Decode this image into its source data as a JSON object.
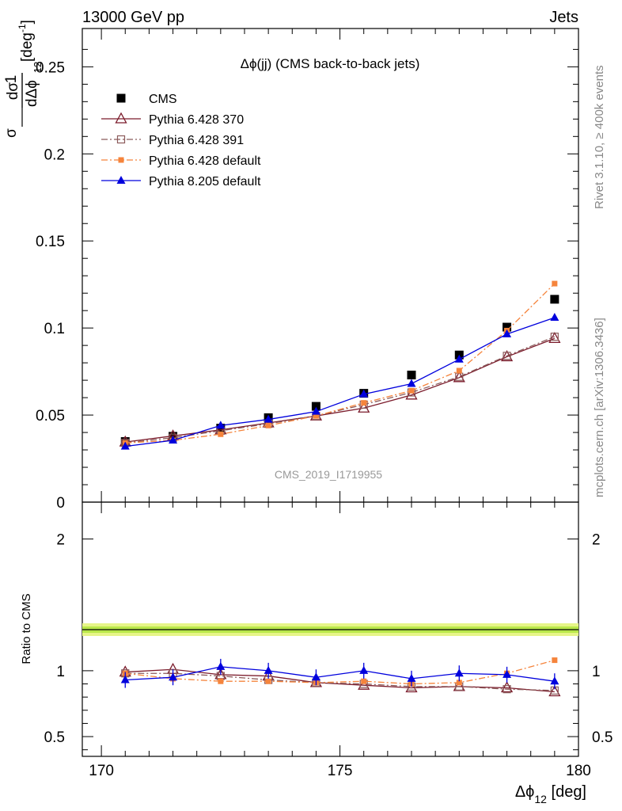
{
  "header": {
    "left": "13000 GeV pp",
    "right": "Jets"
  },
  "chart_data": {
    "type": "line",
    "title": "Δϕ(jj) (CMS back-to-back jets)",
    "analysis_id": "CMS_2019_I1719955",
    "side_label_top": "Rivet 3.1.10, ≥ 400k events",
    "side_label_bottom": "mcplots.cern.ch [arXiv:1306.3436]",
    "xlabel_main": "Δϕ",
    "xlabel_sub": "12",
    "xlabel_unit": " [deg]",
    "ylabel_parts": {
      "one": "1",
      "dsigma": "dσ",
      "sigma": "σ",
      "dphi": "dΔϕ",
      "sub": "12",
      "unit": "[deg",
      "unit_sup": "-1",
      "unit_end": "]"
    },
    "ratio_ylabel": "Ratio to CMS",
    "xlim": [
      169.6,
      180.0
    ],
    "xticks": [
      170,
      175,
      180
    ],
    "xtick_labels": [
      "170",
      "175",
      "180"
    ],
    "main": {
      "ylim": [
        0,
        0.272
      ],
      "yticks": [
        0,
        0.05,
        0.1,
        0.15,
        0.2,
        0.25
      ],
      "ytick_labels": [
        "0",
        "0.05",
        "0.1",
        "0.15",
        "0.2",
        "0.25"
      ]
    },
    "ratio": {
      "ylim": [
        0.35,
        2.28
      ],
      "yticks": [
        0.5,
        1,
        2
      ],
      "ytick_labels": [
        "0.5",
        "1",
        "2"
      ]
    },
    "x": [
      170.5,
      171.5,
      172.5,
      173.5,
      174.5,
      175.5,
      176.5,
      177.5,
      178.5,
      179.5
    ],
    "series": [
      {
        "name": "CMS",
        "color": "#000000",
        "marker": "square",
        "line": "none",
        "values": [
          0.0348,
          0.0378,
          0.0425,
          0.0485,
          0.055,
          0.0625,
          0.073,
          0.0845,
          0.1005,
          0.1165
        ]
      },
      {
        "name": "Pythia 6.428 370",
        "color": "#7b1b2b",
        "marker": "triangle-open",
        "line": "solid",
        "values": [
          0.0345,
          0.038,
          0.0415,
          0.0455,
          0.0495,
          0.054,
          0.0615,
          0.0715,
          0.0835,
          0.094
        ],
        "ratio": [
          0.99,
          1.01,
          0.97,
          0.96,
          0.91,
          0.89,
          0.87,
          0.88,
          0.87,
          0.84
        ]
      },
      {
        "name": "Pythia 6.428 391",
        "color": "#8b5a5a",
        "marker": "square-open",
        "line": "dashdot",
        "values": [
          0.034,
          0.037,
          0.041,
          0.045,
          0.0495,
          0.056,
          0.063,
          0.072,
          0.084,
          0.095
        ],
        "ratio": [
          0.98,
          0.98,
          0.96,
          0.93,
          0.91,
          0.9,
          0.88,
          0.88,
          0.86,
          0.85
        ]
      },
      {
        "name": "Pythia 6.428 default",
        "color": "#f5843c",
        "marker": "square-small",
        "line": "dashdot",
        "values": [
          0.034,
          0.0355,
          0.039,
          0.044,
          0.0495,
          0.057,
          0.064,
          0.0755,
          0.0985,
          0.1255
        ],
        "ratio": [
          0.98,
          0.94,
          0.92,
          0.92,
          0.91,
          0.92,
          0.9,
          0.91,
          0.98,
          1.08
        ]
      },
      {
        "name": "Pythia 8.205 default",
        "color": "#0000dd",
        "marker": "triangle",
        "line": "solid",
        "values": [
          0.032,
          0.0355,
          0.044,
          0.0475,
          0.052,
          0.062,
          0.068,
          0.082,
          0.0965,
          0.106
        ],
        "ratio": [
          0.93,
          0.95,
          1.03,
          1.0,
          0.95,
          1.0,
          0.94,
          0.98,
          0.97,
          0.92
        ]
      }
    ]
  }
}
